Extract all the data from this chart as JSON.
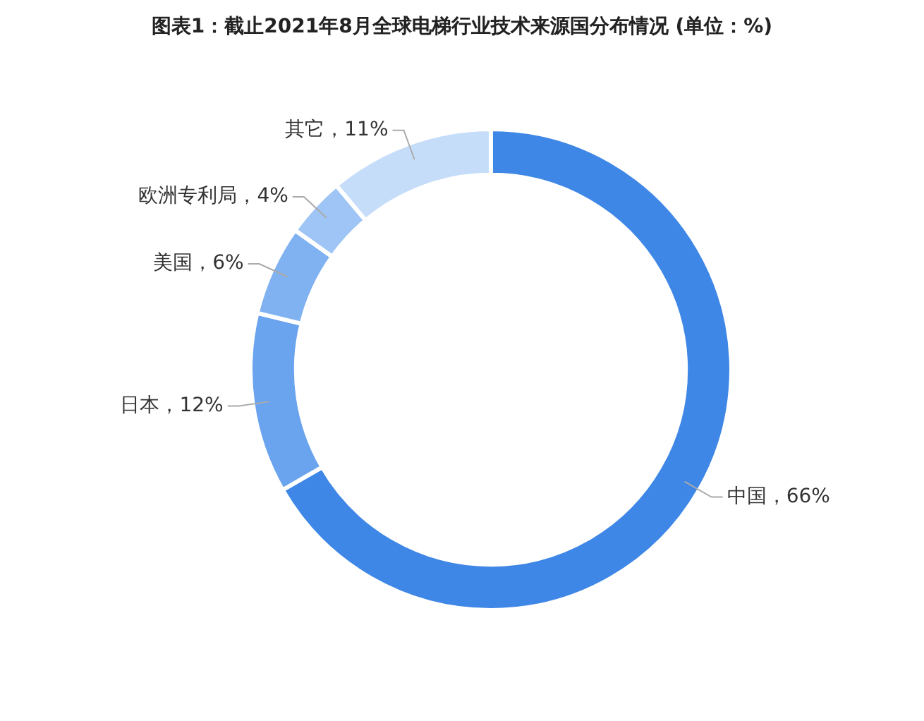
{
  "chart_data": {
    "type": "donut",
    "title": "图表1：截止2021年8月全球电梯行业技术来源国分布情况 (单位：%)",
    "categories": [
      "中国",
      "日本",
      "美国",
      "欧洲专利局",
      "其它"
    ],
    "values": [
      66,
      12,
      6,
      4,
      11
    ],
    "value_labels": [
      "，66%",
      "，12%",
      "，6%",
      "，4%",
      "，11%"
    ],
    "colors": [
      "#3f87e6",
      "#6aa3ee",
      "#80b2f1",
      "#9ec5f5",
      "#c6ddf9"
    ],
    "legend": false
  }
}
